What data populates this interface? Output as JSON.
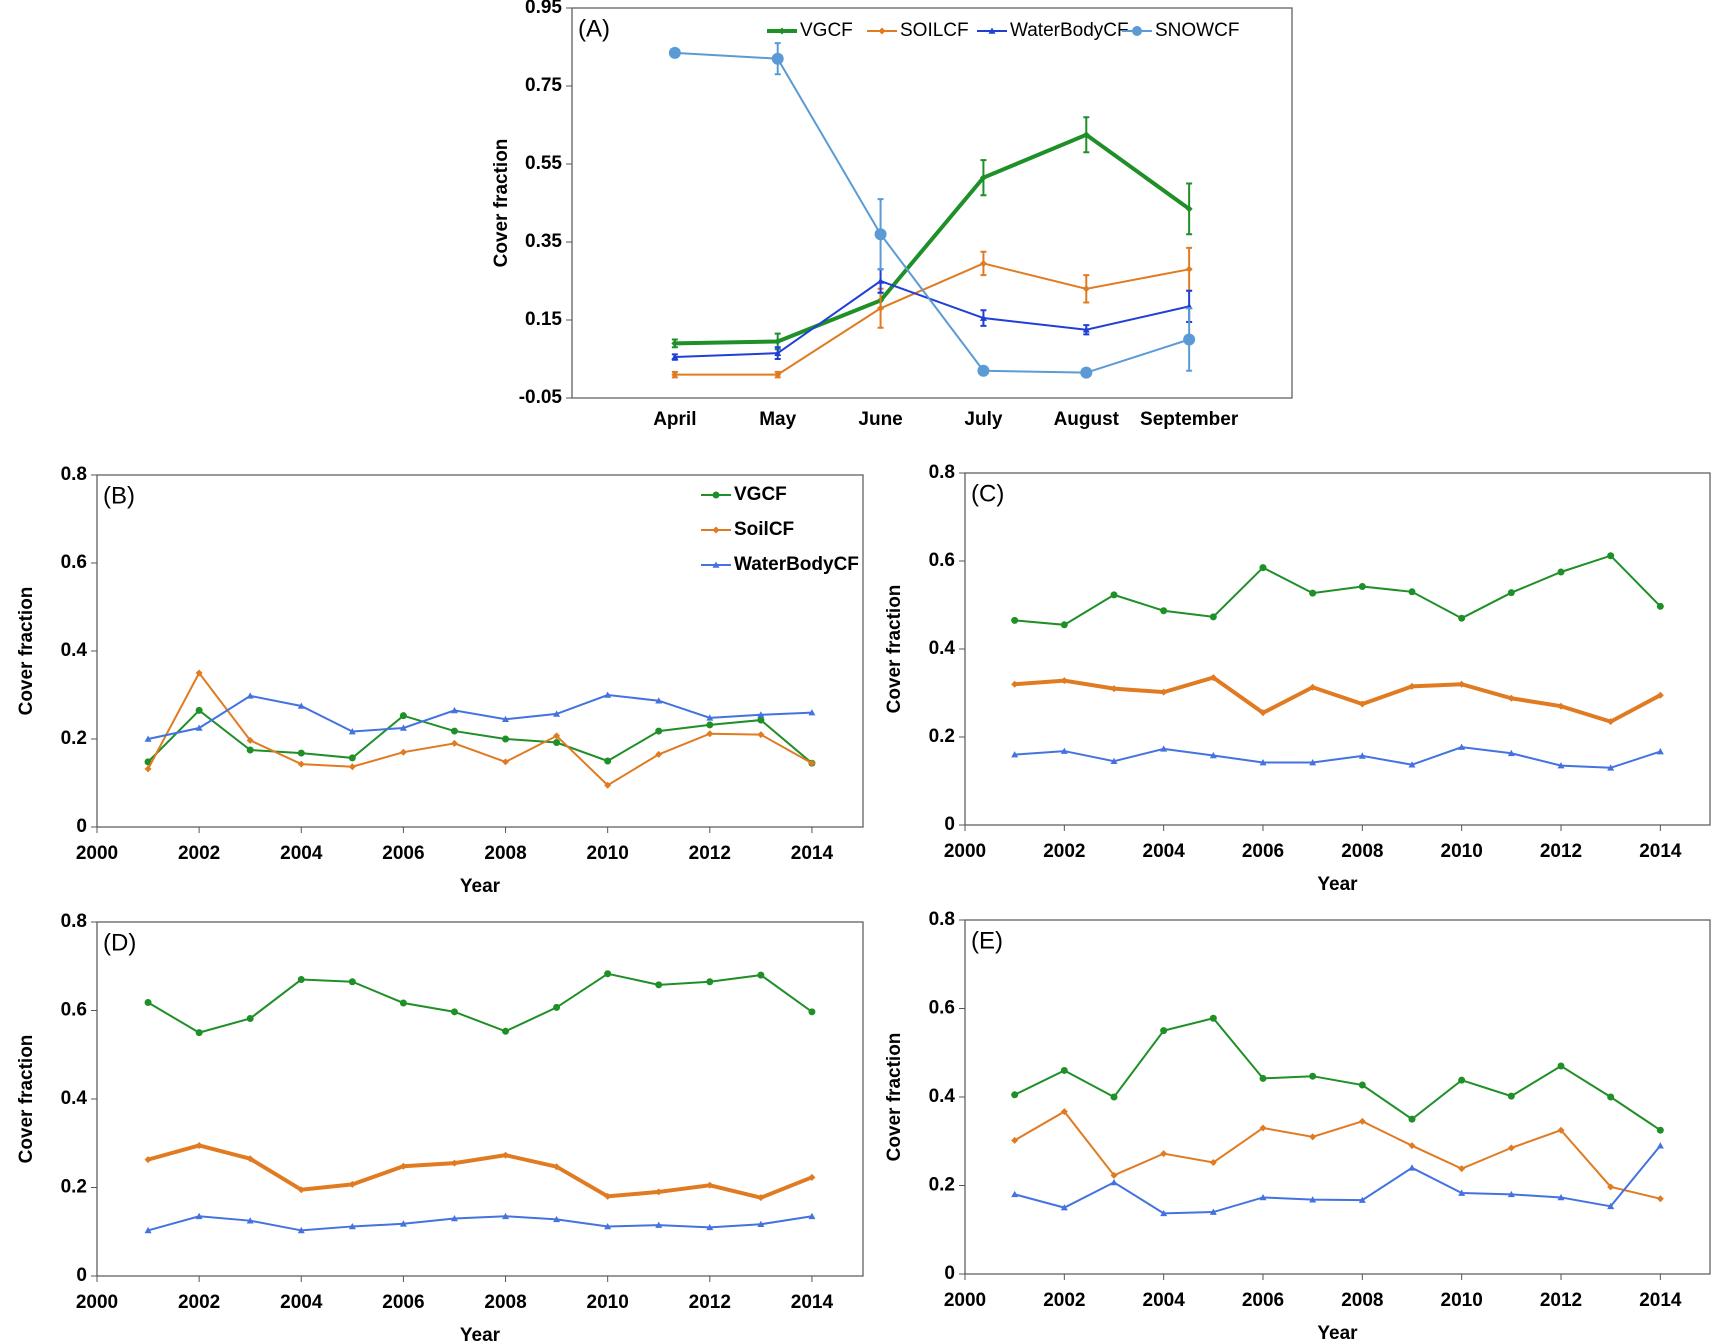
{
  "chart_data": [
    {
      "type": "line",
      "label": "(A)",
      "ylabel": "Cover fraction",
      "legend": "top",
      "categories": [
        "April",
        "May",
        "June",
        "July",
        "August",
        "September"
      ],
      "ylim": [
        -0.05,
        0.95
      ],
      "yticks": [
        -0.05,
        0.15,
        0.35,
        0.55,
        0.75,
        0.95
      ],
      "series": [
        {
          "name": "VGCF",
          "color": "#1f8f28",
          "marker": "diamond",
          "thick": true,
          "values": [
            0.09,
            0.095,
            0.2,
            0.515,
            0.625,
            0.435
          ],
          "errors": [
            0.01,
            0.02,
            0.02,
            0.045,
            0.045,
            0.065
          ]
        },
        {
          "name": "SOILCF",
          "color": "#e07b22",
          "marker": "diamond",
          "values": [
            0.01,
            0.01,
            0.18,
            0.295,
            0.23,
            0.28
          ],
          "errors": [
            0.007,
            0.007,
            0.05,
            0.03,
            0.035,
            0.055
          ]
        },
        {
          "name": "WaterBodyCF",
          "color": "#1f3fd6",
          "marker": "triangle",
          "values": [
            0.055,
            0.065,
            0.25,
            0.155,
            0.125,
            0.185
          ],
          "errors": [
            0.007,
            0.015,
            0.03,
            0.02,
            0.012,
            0.04
          ]
        },
        {
          "name": "SNOWCF",
          "color": "#5b9bd5",
          "marker": "circle",
          "values": [
            0.835,
            0.82,
            0.37,
            0.02,
            0.015,
            0.1
          ],
          "errors": [
            0.01,
            0.04,
            0.09,
            0.01,
            0.005,
            0.08
          ]
        }
      ]
    },
    {
      "type": "line",
      "label": "(B)",
      "ylabel": "Cover fraction",
      "xlabel": "Year",
      "legend": "upper-right",
      "x": [
        2001,
        2002,
        2003,
        2004,
        2005,
        2006,
        2007,
        2008,
        2009,
        2010,
        2011,
        2012,
        2013,
        2014
      ],
      "xlim": [
        2000,
        2015
      ],
      "xticks": [
        2000,
        2002,
        2004,
        2006,
        2008,
        2010,
        2012,
        2014
      ],
      "ylim": [
        0,
        0.8
      ],
      "yticks": [
        0,
        0.2,
        0.4,
        0.6,
        0.8
      ],
      "series": [
        {
          "name": "VGCF",
          "color": "#1f8f28",
          "marker": "circle",
          "values": [
            0.148,
            0.265,
            0.175,
            0.168,
            0.157,
            0.253,
            0.218,
            0.2,
            0.192,
            0.15,
            0.218,
            0.232,
            0.243,
            0.145
          ]
        },
        {
          "name": "SoilCF",
          "color": "#e07b22",
          "marker": "diamond",
          "values": [
            0.132,
            0.35,
            0.197,
            0.143,
            0.137,
            0.17,
            0.19,
            0.148,
            0.207,
            0.095,
            0.165,
            0.212,
            0.21,
            0.145
          ]
        },
        {
          "name": "WaterBodyCF",
          "color": "#4472e0",
          "marker": "triangle",
          "values": [
            0.2,
            0.225,
            0.298,
            0.275,
            0.217,
            0.225,
            0.265,
            0.245,
            0.257,
            0.3,
            0.287,
            0.248,
            0.255,
            0.26
          ]
        }
      ]
    },
    {
      "type": "line",
      "label": "(C)",
      "ylabel": "Cover fraction",
      "xlabel": "Year",
      "x": [
        2001,
        2002,
        2003,
        2004,
        2005,
        2006,
        2007,
        2008,
        2009,
        2010,
        2011,
        2012,
        2013,
        2014
      ],
      "xlim": [
        2000,
        2015
      ],
      "xticks": [
        2000,
        2002,
        2004,
        2006,
        2008,
        2010,
        2012,
        2014
      ],
      "ylim": [
        0,
        0.8
      ],
      "yticks": [
        0,
        0.2,
        0.4,
        0.6,
        0.8
      ],
      "series": [
        {
          "color": "#1f8f28",
          "marker": "circle",
          "values": [
            0.465,
            0.455,
            0.523,
            0.487,
            0.473,
            0.585,
            0.527,
            0.542,
            0.53,
            0.47,
            0.528,
            0.575,
            0.612,
            0.497
          ]
        },
        {
          "color": "#e07b22",
          "marker": "diamond",
          "thick": true,
          "values": [
            0.32,
            0.328,
            0.31,
            0.302,
            0.335,
            0.255,
            0.313,
            0.275,
            0.315,
            0.32,
            0.288,
            0.27,
            0.235,
            0.295
          ]
        },
        {
          "color": "#4472e0",
          "marker": "triangle",
          "values": [
            0.16,
            0.168,
            0.145,
            0.173,
            0.158,
            0.142,
            0.142,
            0.157,
            0.137,
            0.177,
            0.163,
            0.135,
            0.13,
            0.167
          ]
        }
      ]
    },
    {
      "type": "line",
      "label": "(D)",
      "ylabel": "Cover fraction",
      "xlabel": "Year",
      "x": [
        2001,
        2002,
        2003,
        2004,
        2005,
        2006,
        2007,
        2008,
        2009,
        2010,
        2011,
        2012,
        2013,
        2014
      ],
      "xlim": [
        2000,
        2015
      ],
      "xticks": [
        2000,
        2002,
        2004,
        2006,
        2008,
        2010,
        2012,
        2014
      ],
      "ylim": [
        0,
        0.8
      ],
      "yticks": [
        0,
        0.2,
        0.4,
        0.6,
        0.8
      ],
      "series": [
        {
          "color": "#1f8f28",
          "marker": "circle",
          "values": [
            0.618,
            0.55,
            0.582,
            0.67,
            0.665,
            0.617,
            0.597,
            0.553,
            0.607,
            0.683,
            0.658,
            0.665,
            0.68,
            0.597
          ]
        },
        {
          "color": "#e07b22",
          "marker": "diamond",
          "thick": true,
          "values": [
            0.263,
            0.295,
            0.265,
            0.195,
            0.207,
            0.248,
            0.255,
            0.273,
            0.247,
            0.18,
            0.19,
            0.205,
            0.177,
            0.223
          ]
        },
        {
          "color": "#4472e0",
          "marker": "triangle",
          "values": [
            0.103,
            0.135,
            0.125,
            0.103,
            0.112,
            0.118,
            0.13,
            0.135,
            0.128,
            0.112,
            0.115,
            0.11,
            0.117,
            0.135
          ]
        }
      ]
    },
    {
      "type": "line",
      "label": "(E)",
      "ylabel": "Cover fraction",
      "xlabel": "Year",
      "x": [
        2001,
        2002,
        2003,
        2004,
        2005,
        2006,
        2007,
        2008,
        2009,
        2010,
        2011,
        2012,
        2013,
        2014
      ],
      "xlim": [
        2000,
        2015
      ],
      "xticks": [
        2000,
        2002,
        2004,
        2006,
        2008,
        2010,
        2012,
        2014
      ],
      "ylim": [
        0,
        0.8
      ],
      "yticks": [
        0,
        0.2,
        0.4,
        0.6,
        0.8
      ],
      "series": [
        {
          "color": "#1f8f28",
          "marker": "circle",
          "values": [
            0.405,
            0.46,
            0.4,
            0.55,
            0.578,
            0.442,
            0.447,
            0.427,
            0.35,
            0.438,
            0.402,
            0.47,
            0.4,
            0.325
          ]
        },
        {
          "color": "#e07b22",
          "marker": "diamond",
          "values": [
            0.302,
            0.367,
            0.223,
            0.272,
            0.252,
            0.33,
            0.31,
            0.345,
            0.29,
            0.238,
            0.285,
            0.325,
            0.197,
            0.17
          ]
        },
        {
          "color": "#4472e0",
          "marker": "triangle",
          "values": [
            0.18,
            0.15,
            0.207,
            0.137,
            0.14,
            0.173,
            0.168,
            0.167,
            0.24,
            0.183,
            0.18,
            0.173,
            0.153,
            0.29
          ]
        }
      ]
    }
  ]
}
